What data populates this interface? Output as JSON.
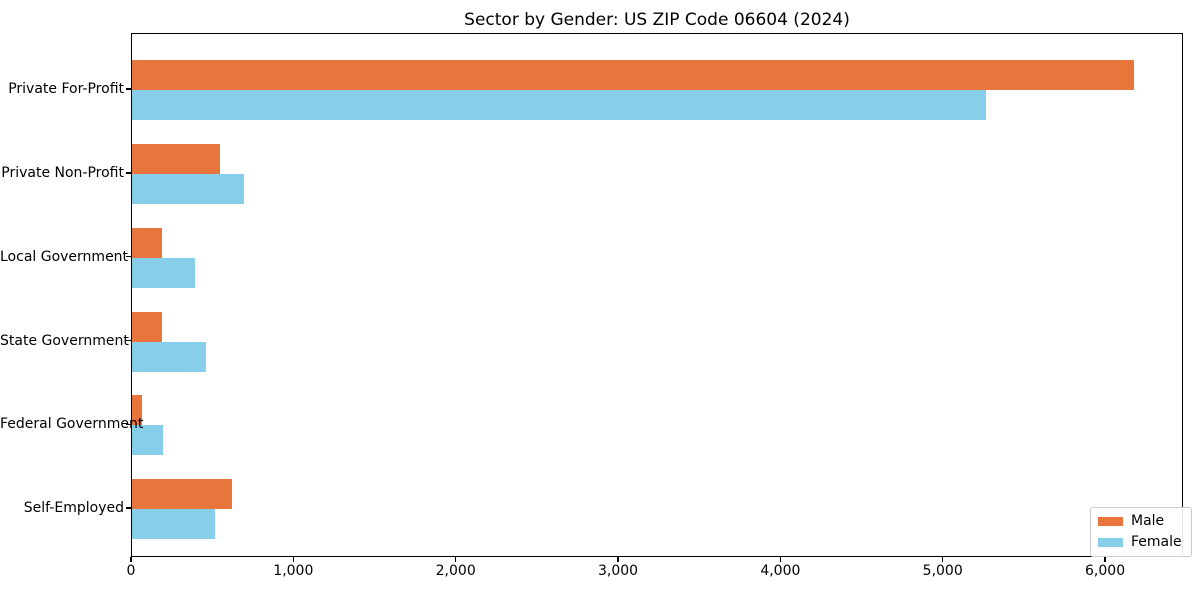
{
  "chart_data": {
    "type": "bar",
    "orientation": "horizontal",
    "title": "Sector by Gender: US ZIP Code 06604 (2024)",
    "categories": [
      "Private For-Profit",
      "Private Non-Profit",
      "Local Government",
      "State Government",
      "Federal Government",
      "Self-Employed"
    ],
    "series": [
      {
        "name": "Male",
        "color": "#E8763C",
        "values": [
          6170,
          545,
          185,
          185,
          60,
          615
        ]
      },
      {
        "name": "Female",
        "color": "#87CEEB",
        "values": [
          5260,
          690,
          390,
          455,
          190,
          510
        ]
      }
    ],
    "xlabel": "",
    "ylabel": "",
    "xlim": [
      0,
      6480
    ],
    "x_ticks": [
      0,
      1000,
      2000,
      3000,
      4000,
      5000,
      6000
    ],
    "x_tick_labels": [
      "0",
      "1,000",
      "2,000",
      "3,000",
      "4,000",
      "5,000",
      "6,000"
    ],
    "grid": false,
    "legend_position": "lower right",
    "plot_border_color": "#000000",
    "background_color": "#ffffff"
  }
}
